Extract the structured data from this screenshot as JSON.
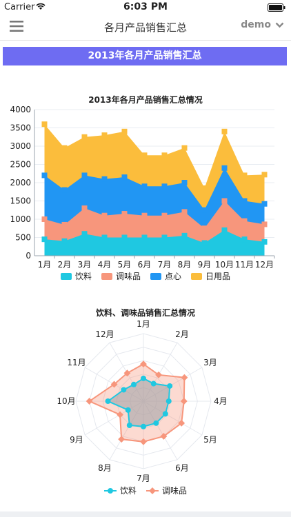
{
  "status": {
    "carrier": "Carrier",
    "time": "6:03 PM"
  },
  "navbar": {
    "title": "各月产品销售汇总",
    "user": "demo"
  },
  "banner": {
    "title": "2013年各月产品销售汇总"
  },
  "area_chart": {
    "title": "2013年各月产品销售汇总情况",
    "legend": [
      {
        "name": "饮料",
        "color": "#1fc8e1"
      },
      {
        "name": "调味品",
        "color": "#f7967c"
      },
      {
        "name": "点心",
        "color": "#2196f3"
      },
      {
        "name": "日用品",
        "color": "#fbbd3c"
      }
    ]
  },
  "radar_chart": {
    "title": "饮料、调味品销售汇总情况",
    "legend": [
      {
        "name": "饮料",
        "color": "#1fc8e1"
      },
      {
        "name": "调味品",
        "color": "#f7967c"
      }
    ]
  },
  "chart_data": [
    {
      "type": "area",
      "stacked": true,
      "title": "2013年各月产品销售汇总情况",
      "categories": [
        "1月",
        "2月",
        "3月",
        "4月",
        "5月",
        "6月",
        "7月",
        "8月",
        "9月",
        "10月",
        "11月",
        "12月"
      ],
      "yticks": [
        0,
        500,
        1000,
        1500,
        2000,
        2500,
        3000,
        3500,
        4000
      ],
      "ylim": [
        0,
        4000
      ],
      "legend_position": "bottom",
      "series": [
        {
          "name": "饮料",
          "values": [
            450,
            400,
            600,
            500,
            500,
            500,
            500,
            550,
            350,
            700,
            450,
            380
          ]
        },
        {
          "name": "调味品",
          "values": [
            550,
            450,
            700,
            600,
            650,
            600,
            600,
            650,
            400,
            800,
            500,
            480
          ]
        },
        {
          "name": "点心",
          "values": [
            1200,
            950,
            900,
            1000,
            1000,
            800,
            800,
            800,
            500,
            900,
            550,
            560
          ]
        },
        {
          "name": "日用品",
          "values": [
            1400,
            1150,
            1050,
            1200,
            1250,
            850,
            850,
            950,
            600,
            1000,
            700,
            800
          ]
        }
      ]
    },
    {
      "type": "radar",
      "title": "饮料、调味品销售汇总情况",
      "categories": [
        "1月",
        "2月",
        "3月",
        "4月",
        "5月",
        "6月",
        "7月",
        "8月",
        "9月",
        "10月",
        "11月",
        "12月"
      ],
      "max": 1000,
      "legend_position": "bottom",
      "series": [
        {
          "name": "饮料",
          "values": [
            450,
            400,
            600,
            500,
            500,
            500,
            500,
            550,
            350,
            700,
            450,
            380
          ]
        },
        {
          "name": "调味品",
          "values": [
            550,
            450,
            700,
            600,
            650,
            600,
            600,
            650,
            400,
            800,
            500,
            480
          ]
        }
      ]
    }
  ]
}
